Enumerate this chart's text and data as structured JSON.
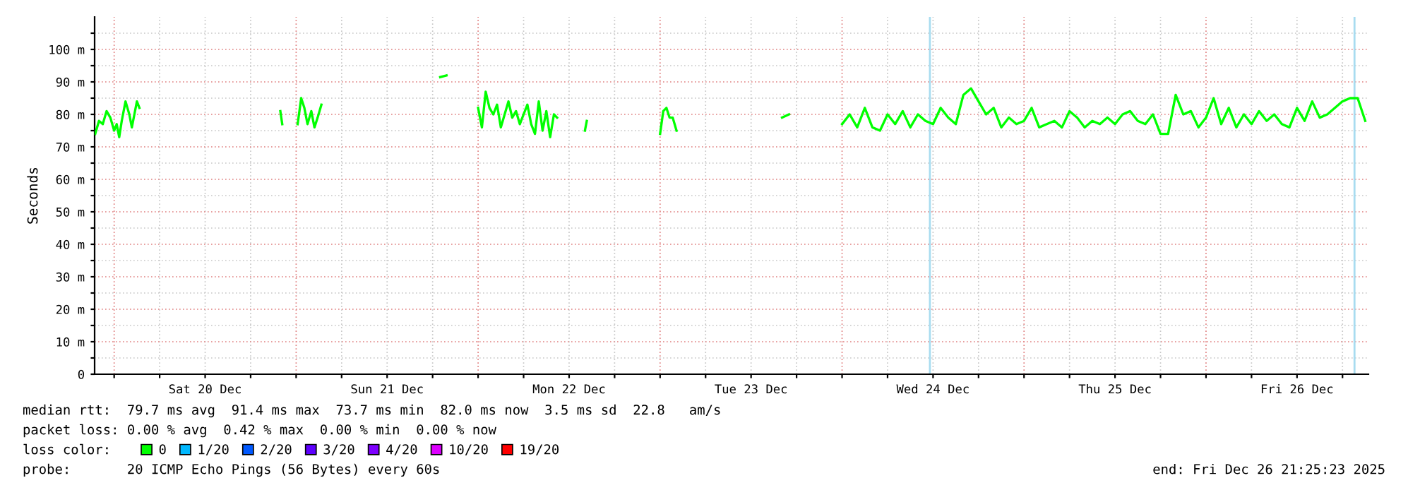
{
  "chart_data": {
    "type": "line",
    "ylabel": "Seconds",
    "xlim": [
      "2025-12-19T21:25:23",
      "2025-12-26T21:25:23"
    ],
    "ylim": [
      0,
      110
    ],
    "xticks": [
      {
        "value": "2025-12-20T00:00",
        "label": null
      },
      {
        "value": "2025-12-20T06:00",
        "label": null
      },
      {
        "value": "2025-12-20T12:00",
        "label": "Sat 20 Dec"
      },
      {
        "value": "2025-12-20T18:00",
        "label": null
      },
      {
        "value": "2025-12-21T00:00",
        "label": null
      },
      {
        "value": "2025-12-21T06:00",
        "label": null
      },
      {
        "value": "2025-12-21T12:00",
        "label": "Sun 21 Dec"
      },
      {
        "value": "2025-12-21T18:00",
        "label": null
      },
      {
        "value": "2025-12-22T00:00",
        "label": null
      },
      {
        "value": "2025-12-22T06:00",
        "label": null
      },
      {
        "value": "2025-12-22T12:00",
        "label": "Mon 22 Dec"
      },
      {
        "value": "2025-12-22T18:00",
        "label": null
      },
      {
        "value": "2025-12-23T00:00",
        "label": null
      },
      {
        "value": "2025-12-23T06:00",
        "label": null
      },
      {
        "value": "2025-12-23T12:00",
        "label": "Tue 23 Dec"
      },
      {
        "value": "2025-12-23T18:00",
        "label": null
      },
      {
        "value": "2025-12-24T00:00",
        "label": null
      },
      {
        "value": "2025-12-24T06:00",
        "label": null
      },
      {
        "value": "2025-12-24T12:00",
        "label": "Wed 24 Dec"
      },
      {
        "value": "2025-12-24T18:00",
        "label": null
      },
      {
        "value": "2025-12-25T00:00",
        "label": null
      },
      {
        "value": "2025-12-25T06:00",
        "label": null
      },
      {
        "value": "2025-12-25T12:00",
        "label": "Thu 25 Dec"
      },
      {
        "value": "2025-12-25T18:00",
        "label": null
      },
      {
        "value": "2025-12-26T00:00",
        "label": null
      },
      {
        "value": "2025-12-26T06:00",
        "label": null
      },
      {
        "value": "2025-12-26T12:00",
        "label": "Fri 26 Dec"
      },
      {
        "value": "2025-12-26T18:00",
        "label": null
      }
    ],
    "yticks": [
      0,
      {
        "value": 5,
        "label": null
      },
      {
        "value": 10,
        "label": "10 m"
      },
      {
        "value": 15,
        "label": null
      },
      {
        "value": 20,
        "label": "20 m"
      },
      {
        "value": 25,
        "label": null
      },
      {
        "value": 30,
        "label": "30 m"
      },
      {
        "value": 35,
        "label": null
      },
      {
        "value": 40,
        "label": "40 m"
      },
      {
        "value": 45,
        "label": null
      },
      {
        "value": 50,
        "label": "50 m"
      },
      {
        "value": 55,
        "label": null
      },
      {
        "value": 60,
        "label": "60 m"
      },
      {
        "value": 65,
        "label": null
      },
      {
        "value": 70,
        "label": "70 m"
      },
      {
        "value": 75,
        "label": null
      },
      {
        "value": 80,
        "label": "80 m"
      },
      {
        "value": 85,
        "label": null
      },
      {
        "value": 90,
        "label": "90 m"
      },
      {
        "value": 95,
        "label": null
      },
      {
        "value": 100,
        "label": "100 m"
      },
      {
        "value": 105,
        "label": null
      }
    ],
    "grid": true,
    "legend": "bottom",
    "legend_title": "loss color:",
    "series": [
      {
        "name": "0",
        "color": "#00ff00",
        "x": [
          "2025-12-19T21:30",
          "2025-12-19T22:00",
          "2025-12-19T22:30",
          "2025-12-19T23:00",
          "2025-12-19T23:30",
          "2025-12-20T00:00",
          "2025-12-20T00:20",
          "2025-12-20T00:40",
          "2025-12-20T01:00",
          "2025-12-20T01:30",
          "2025-12-20T02:00",
          "2025-12-20T02:20",
          "2025-12-20T02:40",
          "2025-12-20T03:00",
          "2025-12-20T03:20",
          "2025-12-20T12:00",
          "2025-12-20T21:55",
          "2025-12-20T22:10",
          "2025-12-20T23:00",
          "2025-12-21T00:12",
          "2025-12-21T00:40",
          "2025-12-21T01:05",
          "2025-12-21T01:30",
          "2025-12-21T02:00",
          "2025-12-21T02:25",
          "2025-12-21T02:50",
          "2025-12-21T03:20",
          "2025-12-21T10:00",
          "2025-12-21T19:00",
          "2025-12-21T19:50",
          "2025-12-21T23:00",
          "2025-12-22T00:00",
          "2025-12-22T00:30",
          "2025-12-22T01:00",
          "2025-12-22T01:30",
          "2025-12-22T02:00",
          "2025-12-22T02:30",
          "2025-12-22T03:00",
          "2025-12-22T03:30",
          "2025-12-22T04:00",
          "2025-12-22T04:30",
          "2025-12-22T05:00",
          "2025-12-22T05:30",
          "2025-12-22T06:00",
          "2025-12-22T06:30",
          "2025-12-22T07:00",
          "2025-12-22T07:30",
          "2025-12-22T08:00",
          "2025-12-22T08:30",
          "2025-12-22T09:00",
          "2025-12-22T09:30",
          "2025-12-22T10:00",
          "2025-12-22T10:25",
          "2025-12-22T12:00",
          "2025-12-22T14:05",
          "2025-12-22T14:20",
          "2025-12-22T18:00",
          "2025-12-23T00:00",
          "2025-12-23T00:25",
          "2025-12-23T00:50",
          "2025-12-23T01:15",
          "2025-12-23T01:40",
          "2025-12-23T02:10",
          "2025-12-23T09:00",
          "2025-12-23T16:05",
          "2025-12-23T17:00",
          "2025-12-23T20:00",
          "2025-12-24T00:00",
          "2025-12-24T01:00",
          "2025-12-24T02:00",
          "2025-12-24T03:00",
          "2025-12-24T04:00",
          "2025-12-24T05:00",
          "2025-12-24T06:00",
          "2025-12-24T07:00",
          "2025-12-24T08:00",
          "2025-12-24T09:00",
          "2025-12-24T10:00",
          "2025-12-24T11:00",
          "2025-12-24T12:00",
          "2025-12-24T13:00",
          "2025-12-24T14:00",
          "2025-12-24T15:00",
          "2025-12-24T16:00",
          "2025-12-24T17:00",
          "2025-12-24T18:00",
          "2025-12-24T19:00",
          "2025-12-24T20:00",
          "2025-12-24T21:00",
          "2025-12-24T22:00",
          "2025-12-24T23:00",
          "2025-12-25T00:00",
          "2025-12-25T01:00",
          "2025-12-25T02:00",
          "2025-12-25T03:00",
          "2025-12-25T04:00",
          "2025-12-25T05:00",
          "2025-12-25T06:00",
          "2025-12-25T07:00",
          "2025-12-25T08:00",
          "2025-12-25T09:00",
          "2025-12-25T10:00",
          "2025-12-25T11:00",
          "2025-12-25T12:00",
          "2025-12-25T13:00",
          "2025-12-25T14:00",
          "2025-12-25T15:00",
          "2025-12-25T16:00",
          "2025-12-25T17:00",
          "2025-12-25T18:00",
          "2025-12-25T19:00",
          "2025-12-25T20:00",
          "2025-12-25T21:00",
          "2025-12-25T22:00",
          "2025-12-25T23:00",
          "2025-12-26T00:00",
          "2025-12-26T01:00",
          "2025-12-26T02:00",
          "2025-12-26T03:00",
          "2025-12-26T04:00",
          "2025-12-26T05:00",
          "2025-12-26T06:00",
          "2025-12-26T07:00",
          "2025-12-26T08:00",
          "2025-12-26T09:00",
          "2025-12-26T10:00",
          "2025-12-26T11:00",
          "2025-12-26T12:00",
          "2025-12-26T13:00",
          "2025-12-26T14:00",
          "2025-12-26T15:00",
          "2025-12-26T16:00",
          "2025-12-26T17:00",
          "2025-12-26T18:00",
          "2025-12-26T19:00",
          "2025-12-26T20:00",
          "2025-12-26T21:00"
        ],
        "values": [
          74,
          78,
          77,
          81,
          79,
          75,
          77,
          73,
          78,
          84,
          80,
          76,
          80,
          84,
          82,
          null,
          81,
          77,
          null,
          77,
          85,
          82,
          77,
          81,
          76,
          79,
          83,
          null,
          91.5,
          92,
          null,
          82,
          76,
          87,
          82,
          80,
          83,
          76,
          80,
          84,
          79,
          81,
          77,
          80,
          83,
          77,
          74,
          84,
          75,
          81,
          73,
          80,
          79,
          null,
          75,
          78,
          null,
          74,
          81,
          82,
          79,
          79,
          75,
          null,
          79,
          80,
          null,
          77,
          80,
          76,
          82,
          76,
          75,
          80,
          77,
          81,
          76,
          80,
          78,
          77,
          82,
          79,
          77,
          86,
          88,
          84,
          80,
          82,
          76,
          79,
          77,
          78,
          82,
          76,
          77,
          78,
          76,
          81,
          79,
          76,
          78,
          77,
          79,
          77,
          80,
          81,
          78,
          77,
          80,
          74,
          74,
          86,
          80,
          81,
          76,
          79,
          85,
          77,
          82,
          76,
          80,
          77,
          81,
          78,
          80,
          77,
          76,
          82,
          78,
          84,
          79,
          80,
          82,
          84,
          85,
          85,
          78
        ]
      },
      {
        "name": "1/20",
        "color": "#00b8ff"
      },
      {
        "name": "2/20",
        "color": "#0059ff"
      },
      {
        "name": "3/20",
        "color": "#5e00ff"
      },
      {
        "name": "4/20",
        "color": "#7e00ff"
      },
      {
        "name": "10/20",
        "color": "#dd00ff"
      },
      {
        "name": "19/20",
        "color": "#ff0000"
      }
    ],
    "ref_lines": [
      {
        "axis": "x",
        "value": "2025-12-24T11:35",
        "color": "#a8dcf0"
      },
      {
        "axis": "x",
        "value": "2025-12-26T19:35",
        "color": "#a8dcf0"
      }
    ],
    "annotations": [
      "median rtt:  79.7 ms avg  91.4 ms max  73.7 ms min  82.0 ms now  3.5 ms sd  22.8   am/s",
      "packet loss: 0.00 % avg  0.42 % max  0.00 % min  0.00 % now",
      "probe:       20 ICMP Echo Pings (56 Bytes) every 60s",
      "end: Fri Dec 26 21:25:23 2025"
    ]
  }
}
